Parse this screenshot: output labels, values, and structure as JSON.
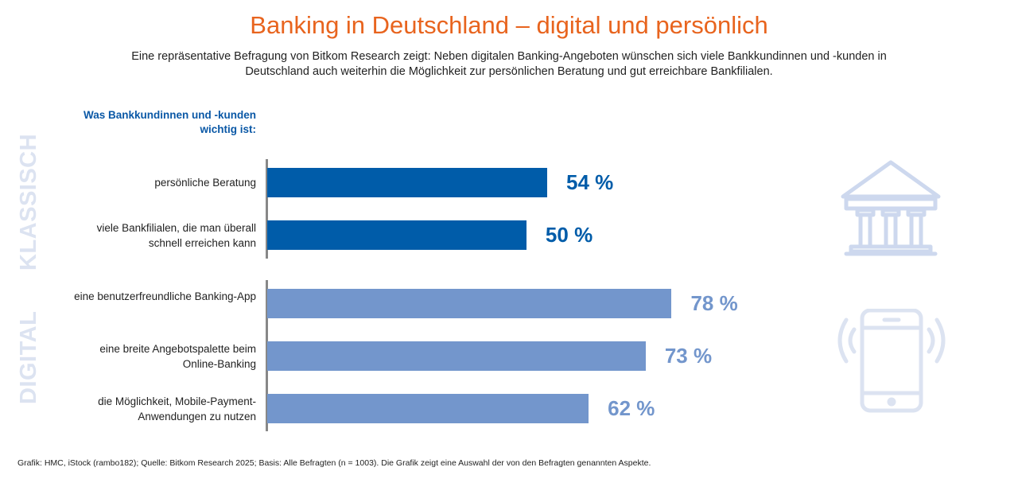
{
  "title": "Banking in Deutschland – digital und persönlich",
  "subtitle": "Eine repräsentative Befragung von Bitkom Research zeigt: Neben digitalen Banking-Angeboten wünschen sich viele Bankkundinnen und -kunden in Deutschland auch weiterhin die Möglichkeit zur persönlichen Beratung und gut erreichbare Bankfilialen.",
  "footer": "Grafik: HMC, iStock (rambo182); Quelle: Bitkom Research 2025; Basis: Alle Befragten (n = 1003). Die Grafik zeigt eine Auswahl der von den Befragten genannten Aspekte.",
  "icons": [
    "bank-building-icon",
    "smartphone-vibrating-icon"
  ],
  "colors": {
    "title": "#e8641e",
    "klassisch": "#005ca9",
    "digital": "#7396cc",
    "group_label": "#dce3f1"
  },
  "chart_data": {
    "type": "bar",
    "orientation": "horizontal",
    "question_label": "Was Bankkundinnen und -kunden wichtig ist:",
    "groups": [
      "KLASSISCH",
      "DIGITAL"
    ],
    "categories": [
      "persönliche Beratung",
      "viele Bankfilialen, die man überall schnell erreichen kann",
      "eine benutzerfreundliche Banking-App",
      "eine breite Angebotspalette beim Online-Banking",
      "die Möglichkeit, Mobile-Payment-Anwendungen zu nutzen"
    ],
    "category_group": [
      "KLASSISCH",
      "KLASSISCH",
      "DIGITAL",
      "DIGITAL",
      "DIGITAL"
    ],
    "values": [
      54,
      50,
      78,
      73,
      62
    ],
    "value_labels": [
      "54 %",
      "50 %",
      "78 %",
      "73 %",
      "62 %"
    ],
    "unit": "%",
    "xlim": [
      0,
      100
    ],
    "grid": false
  }
}
